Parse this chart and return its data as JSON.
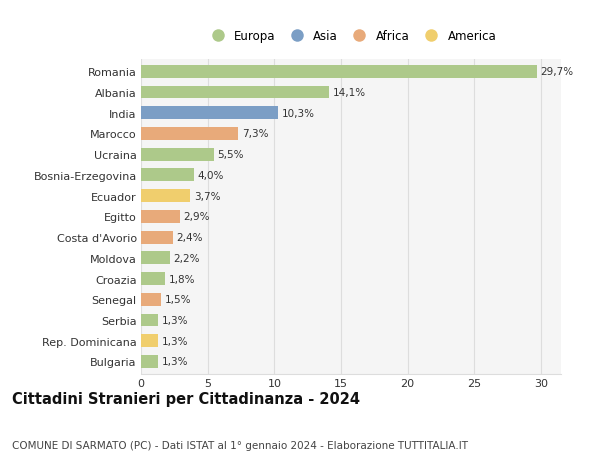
{
  "countries": [
    "Romania",
    "Albania",
    "India",
    "Marocco",
    "Ucraina",
    "Bosnia-Erzegovina",
    "Ecuador",
    "Egitto",
    "Costa d'Avorio",
    "Moldova",
    "Croazia",
    "Senegal",
    "Serbia",
    "Rep. Dominicana",
    "Bulgaria"
  ],
  "values": [
    29.7,
    14.1,
    10.3,
    7.3,
    5.5,
    4.0,
    3.7,
    2.9,
    2.4,
    2.2,
    1.8,
    1.5,
    1.3,
    1.3,
    1.3
  ],
  "labels": [
    "29,7%",
    "14,1%",
    "10,3%",
    "7,3%",
    "5,5%",
    "4,0%",
    "3,7%",
    "2,9%",
    "2,4%",
    "2,2%",
    "1,8%",
    "1,5%",
    "1,3%",
    "1,3%",
    "1,3%"
  ],
  "continents": [
    "Europa",
    "Europa",
    "Asia",
    "Africa",
    "Europa",
    "Europa",
    "America",
    "Africa",
    "Africa",
    "Europa",
    "Europa",
    "Africa",
    "Europa",
    "America",
    "Europa"
  ],
  "colors": {
    "Europa": "#adc98a",
    "Asia": "#7b9ec5",
    "Africa": "#e8aa7a",
    "America": "#f0ce6d"
  },
  "legend_order": [
    "Europa",
    "Asia",
    "Africa",
    "America"
  ],
  "title": "Cittadini Stranieri per Cittadinanza - 2024",
  "subtitle": "COMUNE DI SARMATO (PC) - Dati ISTAT al 1° gennaio 2024 - Elaborazione TUTTITALIA.IT",
  "xlim": [
    0,
    31.5
  ],
  "xticks": [
    0,
    5,
    10,
    15,
    20,
    25,
    30
  ],
  "background_color": "#ffffff",
  "plot_bg_color": "#f5f5f5",
  "grid_color": "#dddddd",
  "bar_height": 0.62,
  "title_fontsize": 10.5,
  "subtitle_fontsize": 7.5,
  "label_fontsize": 7.5,
  "tick_fontsize": 8,
  "legend_fontsize": 8.5
}
